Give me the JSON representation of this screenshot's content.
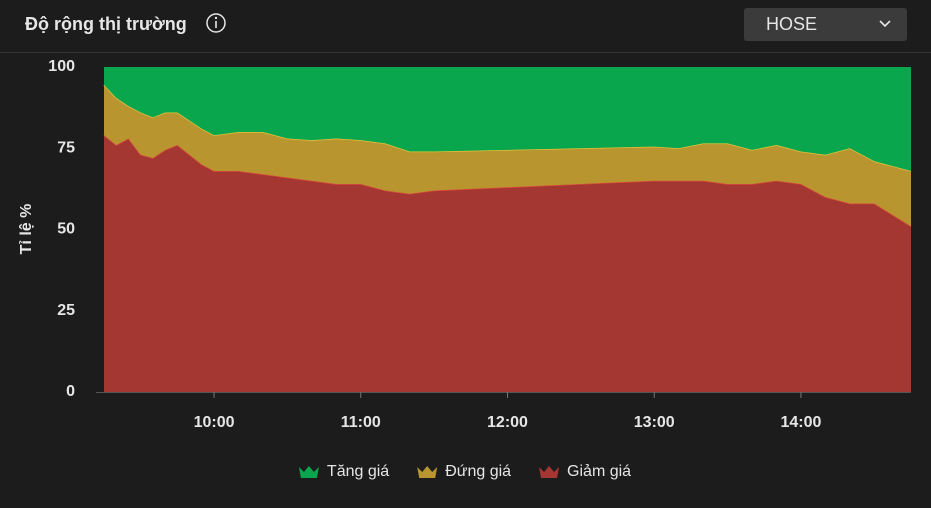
{
  "header": {
    "title": "Độ rộng thị trường",
    "dropdown": "HOSE"
  },
  "chart_data": {
    "type": "stacked-area",
    "ylabel": "Tỉ lệ %",
    "x": [
      555,
      560,
      565,
      570,
      575,
      580,
      585,
      590,
      595,
      600,
      610,
      620,
      630,
      640,
      650,
      660,
      670,
      680,
      690,
      780,
      790,
      800,
      810,
      820,
      830,
      840,
      850,
      860,
      870,
      885
    ],
    "xlim": [
      555,
      885
    ],
    "xticks": [
      {
        "value": 600,
        "label": "10:00"
      },
      {
        "value": 660,
        "label": "11:00"
      },
      {
        "value": 720,
        "label": "12:00"
      },
      {
        "value": 780,
        "label": "13:00"
      },
      {
        "value": 840,
        "label": "14:00"
      }
    ],
    "ylim": [
      0,
      100
    ],
    "yticks": [
      0,
      25,
      50,
      75,
      100
    ],
    "grid": false,
    "series": [
      {
        "name": "Tăng giá",
        "color": "#0aa64d",
        "values": [
          5.5,
          9.5,
          12,
          14,
          15.5,
          14,
          14,
          16.5,
          19,
          21,
          20,
          20,
          22,
          22.5,
          22,
          22.5,
          23.5,
          26,
          26,
          24.5,
          25,
          23.5,
          23.5,
          25.5,
          24,
          26,
          27,
          25,
          29,
          32
        ]
      },
      {
        "name": "Đứng giá",
        "color": "#b8952f",
        "values": [
          15.5,
          14.5,
          10,
          13,
          12.5,
          11.5,
          10,
          10.5,
          11,
          11,
          12,
          13,
          12,
          12.5,
          14,
          13.5,
          14.5,
          13,
          12,
          10.5,
          10,
          11.5,
          12.5,
          10.5,
          11,
          10,
          13,
          17,
          13,
          17
        ]
      },
      {
        "name": "Giảm giá",
        "color": "#a43731",
        "values": [
          79,
          76,
          78,
          73,
          72,
          74.5,
          76,
          73,
          70,
          68,
          68,
          67,
          66,
          65,
          64,
          64,
          62,
          61,
          62,
          65,
          65,
          65,
          64,
          64,
          65,
          64,
          60,
          58,
          58,
          51
        ]
      }
    ]
  }
}
